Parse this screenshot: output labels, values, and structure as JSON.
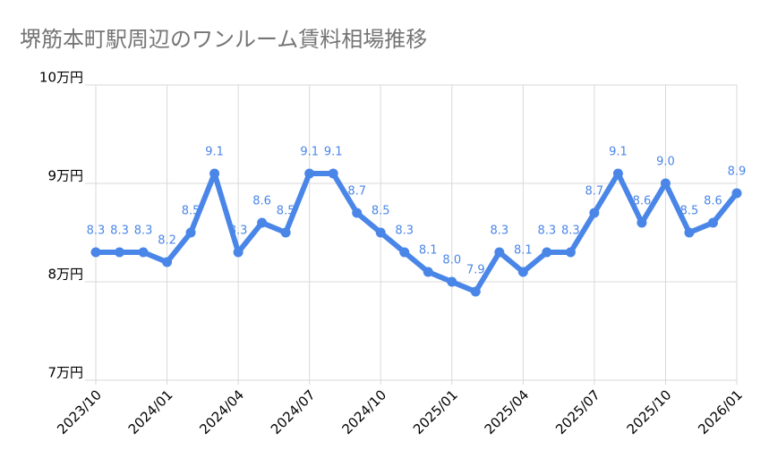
{
  "chart_data": {
    "type": "line",
    "title": "堺筋本町駅周辺のワンルーム賃料相場推移",
    "categories": [
      "2023/10",
      null,
      null,
      "2024/01",
      null,
      null,
      "2024/04",
      null,
      null,
      "2024/07",
      null,
      null,
      "2024/10",
      null,
      null,
      "2025/01",
      null,
      null,
      "2025/04",
      null,
      null,
      "2025/07",
      null,
      null,
      "2025/10",
      null,
      null,
      "2026/01"
    ],
    "values": [
      8.3,
      8.3,
      8.3,
      8.2,
      8.5,
      9.1,
      8.3,
      8.6,
      8.5,
      9.1,
      9.1,
      8.7,
      8.5,
      8.3,
      8.1,
      8.0,
      7.9,
      8.3,
      8.1,
      8.3,
      8.3,
      8.7,
      9.1,
      8.6,
      9.0,
      8.5,
      8.6,
      8.9
    ],
    "value_labels": [
      "8.3",
      "8.3",
      "8.3",
      "8.2",
      "8.5",
      "9.1",
      "8.3",
      "8.6",
      "8.5",
      "9.1",
      "9.1",
      "8.7",
      "8.5",
      "8.3",
      "8.1",
      "8.0",
      "7.9",
      "8.3",
      "8.1",
      "8.3",
      "8.3",
      "8.7",
      "9.1",
      "8.6",
      "9.0",
      "8.5",
      "8.6",
      "8.9"
    ],
    "color": "#4a86e8",
    "ylim": [
      7,
      10
    ],
    "yticks": [
      {
        "value": 7,
        "label": "7万円"
      },
      {
        "value": 8,
        "label": "8万円"
      },
      {
        "value": 9,
        "label": "9万円"
      },
      {
        "value": 10,
        "label": "10万円"
      }
    ],
    "grid": true
  }
}
